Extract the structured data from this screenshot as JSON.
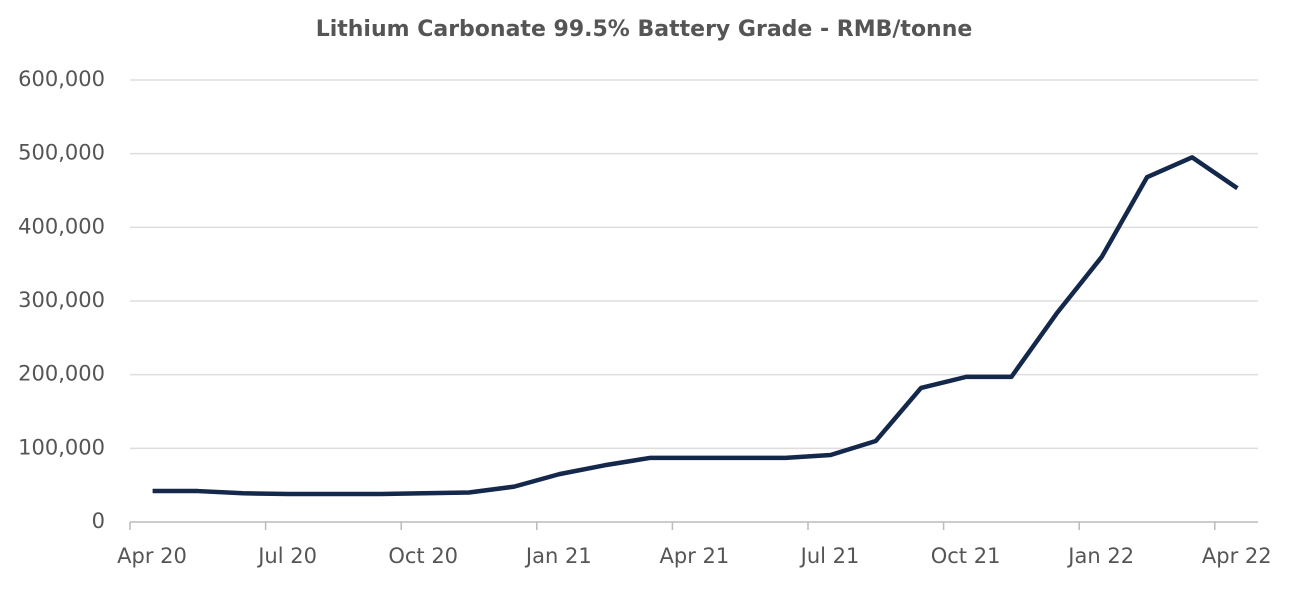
{
  "chart_data": {
    "type": "line",
    "title": "Lithium Carbonate 99.5% Battery Grade - RMB/tonne",
    "categories": [
      "Apr 20",
      null,
      null,
      "Jul 20",
      null,
      null,
      "Oct 20",
      null,
      null,
      "Jan 21",
      null,
      null,
      "Apr 21",
      null,
      null,
      "Jul 21",
      null,
      null,
      "Oct 21",
      null,
      null,
      "Jan 22",
      null,
      null,
      "Apr 22"
    ],
    "series": [
      {
        "name": "Lithium Carbonate 99.5% Battery Grade",
        "color": "#14284b",
        "values": [
          42000,
          42000,
          39000,
          38000,
          38000,
          38000,
          39000,
          40000,
          48000,
          65000,
          77000,
          87000,
          87000,
          87000,
          87000,
          91000,
          110000,
          182000,
          197000,
          197000,
          283000,
          360000,
          468000,
          495000,
          453000
        ]
      }
    ],
    "ylim": [
      0,
      600000
    ],
    "yticks": [
      0,
      {
        "value": 100000,
        "label": "100,000"
      },
      {
        "value": 200000,
        "label": "200,000"
      },
      {
        "value": 300000,
        "label": "300,000"
      },
      {
        "value": 400000,
        "label": "400,000"
      },
      {
        "value": 500000,
        "label": "500,000"
      },
      {
        "value": 600000,
        "label": "600,000"
      }
    ],
    "grid": true
  }
}
